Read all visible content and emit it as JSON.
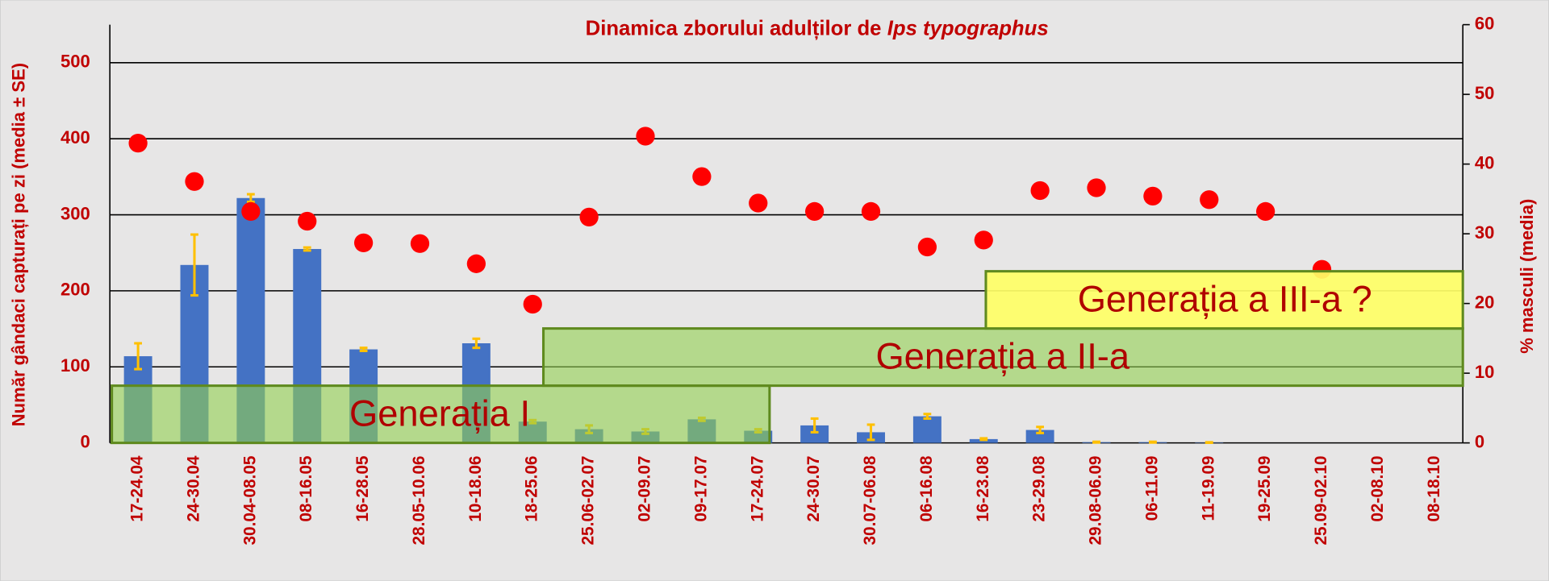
{
  "chart_data": {
    "type": "bar",
    "title": "Dinamica zborului adulților de",
    "title_species": "Ips typographus",
    "y_label": "Număr gândaci capturați pe zi (media ± SE)",
    "y2_label": "% masculi (media)",
    "categories": [
      "17-24.04",
      "24-30.04",
      "30.04-08.05",
      "08-16.05",
      "16-28.05",
      "28.05-10.06",
      "10-18.06",
      "18-25.06",
      "25.06-02.07",
      "02-09.07",
      "09-17.07",
      "17-24.07",
      "24-30.07",
      "30.07-06.08",
      "06-16.08",
      "16-23.08",
      "23-29.08",
      "29.08-06.09",
      "06-11.09",
      "11-19.09",
      "19-25.09",
      "25.09-02.10",
      "02-08.10",
      "08-18.10"
    ],
    "series": [
      {
        "type": "bar",
        "color": "#4472c4",
        "error_color": "#ffc000",
        "values": [
          114,
          234,
          322,
          255,
          123,
          0,
          131,
          28,
          18,
          15,
          31,
          16,
          23,
          14,
          35,
          5,
          17,
          1,
          1,
          0.5,
          0,
          0,
          0,
          0
        ],
        "errors": [
          17,
          40,
          5,
          2,
          2,
          0,
          6,
          2,
          5,
          3,
          2,
          2,
          9,
          10,
          3,
          1,
          4,
          0.5,
          0.5,
          0.3,
          0,
          0,
          0,
          0
        ]
      },
      {
        "type": "scatter",
        "axis": "y2",
        "color": "#ff0000",
        "values": [
          43,
          37.5,
          33.2,
          31.8,
          28.7,
          28.6,
          25.7,
          19.9,
          32.4,
          44,
          38.2,
          34.4,
          33.2,
          33.2,
          28.1,
          29.1,
          36.2,
          36.6,
          35.4,
          34.9,
          33.2,
          24.9,
          null,
          null
        ]
      }
    ],
    "annotations": [
      "Generația I",
      "Generația a II-a",
      "Generația a III-a ?"
    ],
    "ylim": [
      0,
      550
    ],
    "yticks": [
      0,
      100,
      200,
      300,
      400,
      500
    ],
    "y2lim": [
      0,
      60
    ],
    "y2ticks": [
      0,
      10,
      20,
      30,
      40,
      50,
      60
    ],
    "grid": true
  }
}
